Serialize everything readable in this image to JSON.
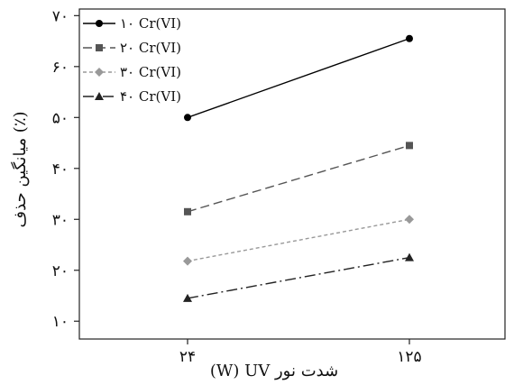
{
  "chart_data": {
    "type": "line",
    "title": "",
    "xlabel": "(W) UV شدت نور",
    "ylabel": "میانگین حذف (٪)",
    "categories": [
      "۲۴",
      "۱۲۵"
    ],
    "y_ticks": [
      {
        "value": 10,
        "label": "۱۰"
      },
      {
        "value": 20,
        "label": "۲۰"
      },
      {
        "value": 30,
        "label": "۳۰"
      },
      {
        "value": 40,
        "label": "۴۰"
      },
      {
        "value": 50,
        "label": "۵۰"
      },
      {
        "value": 60,
        "label": "۶۰"
      },
      {
        "value": 70,
        "label": "۷۰"
      }
    ],
    "ylim": [
      6.5,
      71.3
    ],
    "grid": false,
    "legend": {
      "position": "top-left"
    },
    "series": [
      {
        "name": "۱۰ Cr(VI)",
        "values": [
          50,
          65.5
        ],
        "color": "#000000",
        "dash": "",
        "marker": "circle"
      },
      {
        "name": "۲۰ Cr(VI)",
        "values": [
          31.5,
          44.5
        ],
        "color": "#555555",
        "dash": "10,5",
        "marker": "square"
      },
      {
        "name": "۳۰ Cr(VI)",
        "values": [
          21.8,
          30
        ],
        "color": "#999999",
        "dash": "4,3",
        "marker": "diamond"
      },
      {
        "name": "۴۰ Cr(VI)",
        "values": [
          14.5,
          22.5
        ],
        "color": "#222222",
        "dash": "12,4,2,4",
        "marker": "triangle"
      }
    ]
  }
}
